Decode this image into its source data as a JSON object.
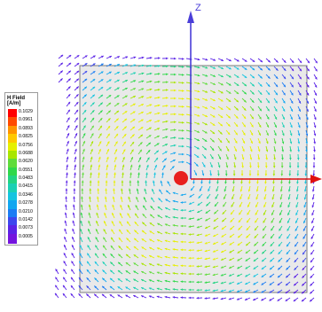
{
  "axes": {
    "z_label": "Z",
    "z_color": "#4a3ed8",
    "x_color": "#e01010"
  },
  "legend": {
    "title": "H Field",
    "unit": "[A/m]",
    "values": [
      "0.1029",
      "0.0961",
      "0.0893",
      "0.0825",
      "0.0756",
      "0.0688",
      "0.0620",
      "0.0551",
      "0.0483",
      "0.0415",
      "0.0346",
      "0.0278",
      "0.0210",
      "0.0142",
      "0.0073",
      "0.0005"
    ],
    "colors": [
      "#ff0000",
      "#ff4a00",
      "#ff9400",
      "#ffc800",
      "#e6f000",
      "#a8e600",
      "#5fdc3a",
      "#2fd84a",
      "#22d482",
      "#1ad0b4",
      "#14c4e0",
      "#10a6f0",
      "#1a7cf4",
      "#3c46ee",
      "#5a22e6",
      "#7414de"
    ]
  },
  "field": {
    "center_marker_color": "#e8201e",
    "conductor_outline_color": "#7a7a7a",
    "conductor_fill_color": "#e9e9e9"
  }
}
